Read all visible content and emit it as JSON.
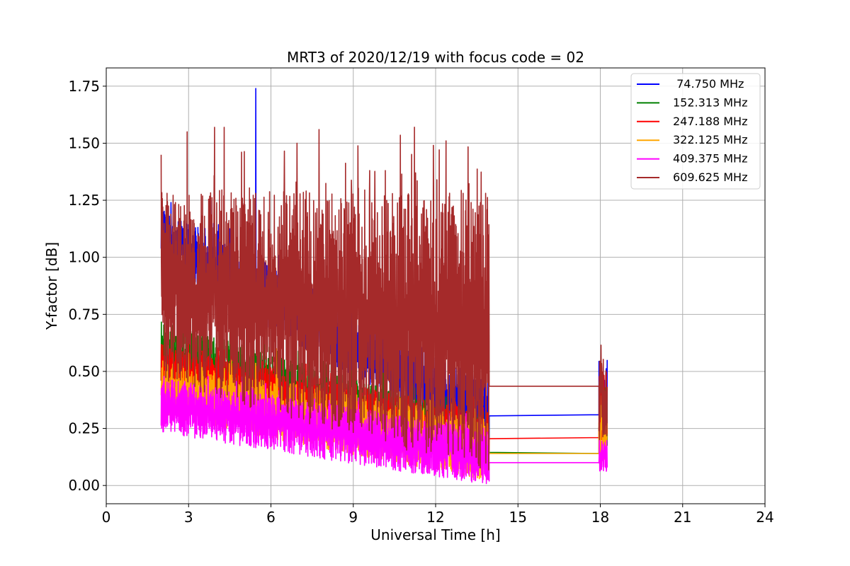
{
  "chart_data": {
    "type": "line",
    "title": "MRT3 of 2020/12/19 with focus code = 02",
    "xlabel": "Universal Time [h]",
    "ylabel": "Y-factor [dB]",
    "xlim": [
      0,
      24
    ],
    "ylim": [
      -0.08,
      1.83
    ],
    "xticks": [
      0,
      3,
      6,
      9,
      12,
      15,
      18,
      21,
      24
    ],
    "xtick_labels": [
      "0",
      "3",
      "6",
      "9",
      "12",
      "15",
      "18",
      "21",
      "24"
    ],
    "yticks": [
      0.0,
      0.25,
      0.5,
      0.75,
      1.0,
      1.25,
      1.5,
      1.75
    ],
    "ytick_labels": [
      "0.00",
      "0.25",
      "0.50",
      "0.75",
      "1.00",
      "1.25",
      "1.50",
      "1.75"
    ],
    "grid": true,
    "legend_position": "top-right",
    "data_segments": [
      {
        "start": 2.0,
        "end": 13.95
      },
      {
        "start": 17.95,
        "end": 18.25
      }
    ],
    "gap_connector": {
      "from": 13.95,
      "to": 17.95
    },
    "series": [
      {
        "name": " 74.750 MHz",
        "color": "#0000ff",
        "typical_range_start": [
          0.95,
          1.22
        ],
        "typical_range_end": [
          0.15,
          0.45
        ],
        "spikes": [
          [
            5.45,
            1.74
          ],
          [
            2.05,
            1.22
          ],
          [
            3.8,
            1.25
          ],
          [
            7.7,
            0.78
          ]
        ],
        "gap_connector": [
          0.305,
          0.31
        ],
        "late_segment_range": [
          0.2,
          0.56
        ]
      },
      {
        "name": "152.313 MHz",
        "color": "#008000",
        "typical_range_start": [
          0.42,
          0.72
        ],
        "typical_range_end": [
          0.1,
          0.3
        ],
        "spikes": [
          [
            3.5,
            0.7
          ],
          [
            4.2,
            0.72
          ]
        ],
        "gap_connector": [
          0.145,
          0.14
        ],
        "late_segment_range": [
          0.12,
          0.45
        ]
      },
      {
        "name": "247.188 MHz",
        "color": "#ff0000",
        "typical_range_start": [
          0.4,
          0.62
        ],
        "typical_range_end": [
          0.1,
          0.32
        ],
        "spikes": [
          [
            3.0,
            0.62
          ]
        ],
        "gap_connector": [
          0.205,
          0.21
        ],
        "late_segment_range": [
          0.15,
          0.5
        ]
      },
      {
        "name": "322.125 MHz",
        "color": "#ffa500",
        "typical_range_start": [
          0.3,
          0.55
        ],
        "typical_range_end": [
          0.02,
          0.3
        ],
        "spikes": [
          [
            6.2,
            0.6
          ]
        ],
        "gap_connector": [
          0.14,
          0.14
        ],
        "late_segment_range": [
          0.1,
          0.4
        ]
      },
      {
        "name": "409.375 MHz",
        "color": "#ff00ff",
        "typical_range_start": [
          0.23,
          0.47
        ],
        "typical_range_end": [
          0.0,
          0.25
        ],
        "spikes": [],
        "gap_connector": [
          0.1,
          0.1
        ],
        "late_segment_range": [
          0.06,
          0.2
        ]
      },
      {
        "name": "609.625 MHz",
        "color": "#a52a2a",
        "typical_range_start": [
          0.45,
          1.3
        ],
        "typical_range_end": [
          0.05,
          1.3
        ],
        "spikes": [
          [
            2.95,
            1.55
          ],
          [
            3.95,
            1.57
          ],
          [
            4.3,
            1.57
          ],
          [
            7.75,
            1.56
          ],
          [
            6.95,
            1.5
          ],
          [
            9.6,
            1.38
          ],
          [
            12.05,
            1.34
          ]
        ],
        "gap_connector": [
          0.435,
          0.435
        ],
        "late_segment_range": [
          0.2,
          0.62
        ]
      }
    ]
  }
}
